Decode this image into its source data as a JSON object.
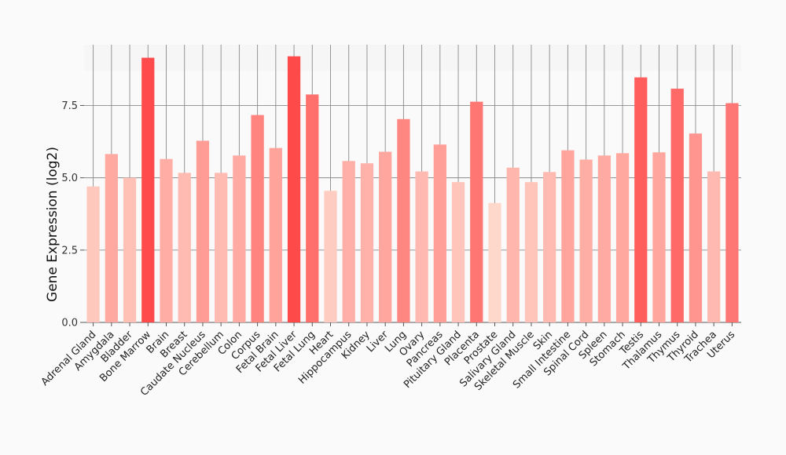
{
  "chart_data": {
    "type": "bar",
    "title": "",
    "xlabel": "",
    "ylabel": "Gene Expression (log2)",
    "ylim": [
      0,
      9.6
    ],
    "yticks": [
      0.0,
      2.5,
      5.0,
      7.5
    ],
    "ytick_labels": [
      "0.0",
      "2.5",
      "5.0",
      "7.5"
    ],
    "grid": true,
    "legend": "none",
    "categories": [
      "Adrenal Gland",
      "Amygdala",
      "Bladder",
      "Bone Marrow",
      "Brain",
      "Breast",
      "Caudate Nucleus",
      "Cerebellum",
      "Colon",
      "Corpus",
      "Fetal Brain",
      "Fetal Liver",
      "Fetal Lung",
      "Heart",
      "Hippocampus",
      "Kidney",
      "Liver",
      "Lung",
      "Ovary",
      "Pancreas",
      "Pituitary Gland",
      "Placenta",
      "Prostate",
      "Salivary Gland",
      "Skeletal Muscle",
      "Skin",
      "Small Intestine",
      "Spinal Cord",
      "Spleen",
      "Stomach",
      "Testis",
      "Thalamus",
      "Thymus",
      "Thyroid",
      "Trachea",
      "Uterus"
    ],
    "values": [
      4.7,
      5.82,
      5.0,
      9.15,
      5.65,
      5.17,
      6.28,
      5.17,
      5.77,
      7.17,
      6.03,
      9.2,
      7.88,
      4.55,
      5.58,
      5.5,
      5.9,
      7.03,
      5.22,
      6.15,
      4.85,
      7.63,
      4.13,
      5.35,
      4.85,
      5.2,
      5.95,
      5.63,
      5.77,
      5.85,
      8.47,
      5.88,
      8.08,
      6.53,
      5.22,
      7.58
    ]
  },
  "colors": {
    "background": "#fafafa",
    "grid": "#8a8a8a",
    "axis": "#555555",
    "bar_low": "#ffd8cc",
    "bar_high": "#ff4a4a"
  }
}
